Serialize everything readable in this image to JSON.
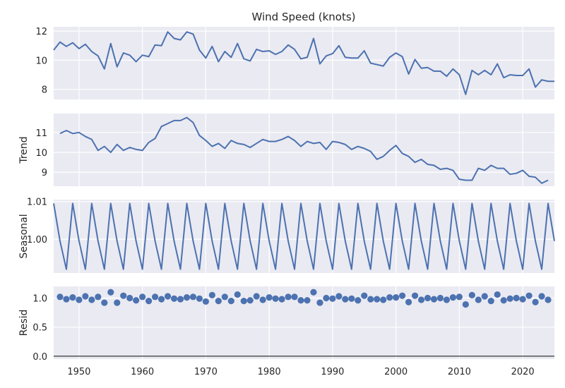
{
  "chart_data": {
    "type": "line",
    "title": "Wind Speed (knots)",
    "xlabel": "",
    "x_range": [
      1946,
      2025
    ],
    "x_ticks": [
      1950,
      1960,
      1970,
      1980,
      1990,
      2000,
      2010,
      2020
    ],
    "years": [
      1946,
      1947,
      1948,
      1949,
      1950,
      1951,
      1952,
      1953,
      1954,
      1955,
      1956,
      1957,
      1958,
      1959,
      1960,
      1961,
      1962,
      1963,
      1964,
      1965,
      1966,
      1967,
      1968,
      1969,
      1970,
      1971,
      1972,
      1973,
      1974,
      1975,
      1976,
      1977,
      1978,
      1979,
      1980,
      1981,
      1982,
      1983,
      1984,
      1985,
      1986,
      1987,
      1988,
      1989,
      1990,
      1991,
      1992,
      1993,
      1994,
      1995,
      1996,
      1997,
      1998,
      1999,
      2000,
      2001,
      2002,
      2003,
      2004,
      2005,
      2006,
      2007,
      2008,
      2009,
      2010,
      2011,
      2012,
      2013,
      2014,
      2015,
      2016,
      2017,
      2018,
      2019,
      2020,
      2021,
      2022,
      2023,
      2024,
      2025
    ],
    "panels": [
      {
        "id": "observed",
        "ylabel": "",
        "ylim": [
          7.3,
          12.3
        ],
        "yticks": [
          8,
          10,
          12
        ],
        "tick_labels": [
          "8",
          "10",
          "12"
        ],
        "kind": "line",
        "values": [
          10.7,
          11.25,
          10.95,
          11.2,
          10.8,
          11.1,
          10.6,
          10.3,
          9.4,
          11.15,
          9.55,
          10.5,
          10.35,
          9.9,
          10.35,
          10.25,
          11.05,
          11.0,
          11.95,
          11.5,
          11.4,
          11.95,
          11.8,
          10.7,
          10.15,
          10.95,
          9.9,
          10.6,
          10.2,
          11.15,
          10.1,
          9.95,
          10.75,
          10.6,
          10.65,
          10.4,
          10.6,
          11.05,
          10.75,
          10.1,
          10.2,
          11.5,
          9.75,
          10.3,
          10.45,
          11.0,
          10.2,
          10.15,
          10.15,
          10.65,
          9.8,
          9.7,
          9.6,
          10.2,
          10.5,
          10.25,
          9.05,
          10.05,
          9.45,
          9.5,
          9.25,
          9.25,
          8.9,
          9.4,
          9.0,
          7.65,
          9.3,
          9.0,
          9.3,
          9.0,
          9.75,
          8.8,
          9.0,
          8.95,
          8.95,
          9.4,
          8.15,
          8.65,
          8.55,
          8.55
        ]
      },
      {
        "id": "trend",
        "ylabel": "Trend",
        "ylim": [
          8.3,
          11.95
        ],
        "yticks": [
          9,
          10,
          11
        ],
        "tick_labels": [
          "9",
          "10",
          "11"
        ],
        "kind": "line",
        "x_from": 1947,
        "x_to": 2024,
        "values": [
          10.95,
          11.1,
          10.95,
          11.0,
          10.8,
          10.65,
          10.1,
          10.3,
          10.0,
          10.4,
          10.1,
          10.25,
          10.15,
          10.1,
          10.5,
          10.7,
          11.3,
          11.45,
          11.6,
          11.6,
          11.75,
          11.5,
          10.85,
          10.6,
          10.3,
          10.45,
          10.2,
          10.6,
          10.45,
          10.4,
          10.25,
          10.45,
          10.65,
          10.55,
          10.55,
          10.65,
          10.8,
          10.6,
          10.3,
          10.55,
          10.45,
          10.5,
          10.15,
          10.55,
          10.5,
          10.4,
          10.15,
          10.3,
          10.2,
          10.05,
          9.65,
          9.8,
          10.1,
          10.35,
          9.95,
          9.8,
          9.5,
          9.65,
          9.4,
          9.35,
          9.15,
          9.2,
          9.1,
          8.65,
          8.6,
          8.6,
          9.2,
          9.1,
          9.35,
          9.2,
          9.2,
          8.9,
          8.95,
          9.1,
          8.8,
          8.75,
          8.45,
          8.6
        ]
      },
      {
        "id": "seasonal",
        "ylabel": "Seasonal",
        "ylim": [
          0.991,
          1.0105
        ],
        "yticks": [
          1.0,
          1.01
        ],
        "tick_labels": [
          "1.00",
          "1.01"
        ],
        "kind": "line",
        "pattern": [
          1.0095,
          0.9995,
          0.992
        ]
      },
      {
        "id": "resid",
        "ylabel": "Resid",
        "ylim": [
          -0.05,
          1.2
        ],
        "yticks": [
          0.0,
          0.5,
          1.0
        ],
        "tick_labels": [
          "0.0",
          "0.5",
          "1.0"
        ],
        "kind": "scatter",
        "zero_line": true,
        "x_from": 1947,
        "x_to": 2024,
        "values": [
          1.02,
          0.98,
          1.01,
          0.97,
          1.03,
          0.97,
          1.02,
          0.92,
          1.1,
          0.92,
          1.04,
          1.0,
          0.96,
          1.02,
          0.95,
          1.02,
          0.98,
          1.03,
          0.99,
          0.98,
          1.01,
          1.02,
          0.99,
          0.94,
          1.05,
          0.95,
          1.02,
          0.95,
          1.06,
          0.95,
          0.96,
          1.03,
          0.97,
          1.01,
          0.99,
          0.98,
          1.02,
          1.02,
          0.96,
          0.96,
          1.1,
          0.92,
          1.0,
          0.99,
          1.03,
          0.98,
          0.99,
          0.96,
          1.04,
          0.98,
          0.98,
          0.97,
          1.01,
          1.01,
          1.04,
          0.93,
          1.04,
          0.97,
          1.0,
          0.98,
          1.0,
          0.97,
          1.01,
          1.02,
          0.89,
          1.05,
          0.97,
          1.03,
          0.95,
          1.06,
          0.96,
          0.99,
          1.0,
          0.98,
          1.04,
          0.93,
          1.03,
          0.97
        ]
      }
    ],
    "colors": {
      "line": "#4c72b0",
      "panel": "#eaeaf2",
      "grid": "#ffffff"
    },
    "grid": true
  }
}
